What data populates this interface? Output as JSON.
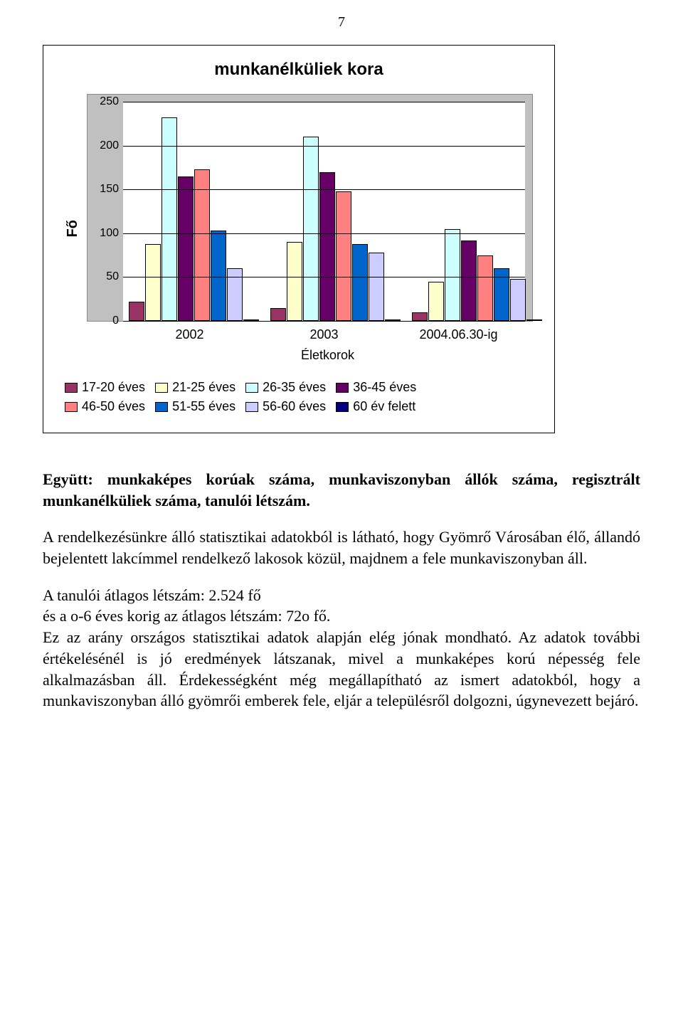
{
  "page_number": "7",
  "chart": {
    "title": "munkanélküliek kora",
    "ylabel": "Fő",
    "xlabel": "Életkorok",
    "ylim_max": 250,
    "ytick_step": 50,
    "yticks": [
      "0",
      "50",
      "100",
      "150",
      "200",
      "250"
    ],
    "background_color": "#c0c0c0",
    "plot_background": "#ffffff",
    "grid_color": "#000000",
    "categories": [
      "2002",
      "2003",
      "2004.06.30-ig"
    ],
    "series": [
      {
        "label": "17-20 éves",
        "color": "#993366",
        "values": [
          22,
          15,
          10
        ]
      },
      {
        "label": "21-25 éves",
        "color": "#ffffcc",
        "values": [
          88,
          90,
          45
        ]
      },
      {
        "label": "26-35 éves",
        "color": "#ccffff",
        "values": [
          232,
          210,
          105
        ]
      },
      {
        "label": "36-45 éves",
        "color": "#660066",
        "values": [
          165,
          170,
          92
        ]
      },
      {
        "label": "46-50 éves",
        "color": "#ff8080",
        "values": [
          173,
          148,
          75
        ]
      },
      {
        "label": "51-55 éves",
        "color": "#0066cc",
        "values": [
          103,
          88,
          60
        ]
      },
      {
        "label": "56-60 éves",
        "color": "#ccccff",
        "values": [
          60,
          78,
          48
        ]
      },
      {
        "label": "60 év felett",
        "color": "#000080",
        "values": [
          2,
          0,
          0
        ]
      }
    ]
  },
  "text": {
    "summary_bold": "Együtt: munkaképes korúak száma, munkaviszonyban állók száma, regisztrált munkanélküliek száma, tanulói létszám.",
    "para2": "A rendelkezésünkre álló statisztikai adatokból is látható, hogy Gyömrő Városában élő, állandó bejelentett lakcímmel rendelkező lakosok közül, majdnem a fele munkaviszonyban áll.",
    "para3_line1": "A tanulói átlagos létszám: 2.524 fő",
    "para3_line2": "és a  o-6 éves korig az átlagos létszám: 72o fő.",
    "para3_rest": "Ez az arány országos statisztikai adatok alapján elég jónak mondható. Az adatok további értékelésénél is jó eredmények látszanak, mivel a munkaképes korú népesség fele alkalmazásban áll. Érdekességként még megállapítható az ismert adatokból, hogy a munkaviszonyban álló gyömrői emberek fele, eljár a településről dolgozni, úgynevezett bejáró."
  }
}
